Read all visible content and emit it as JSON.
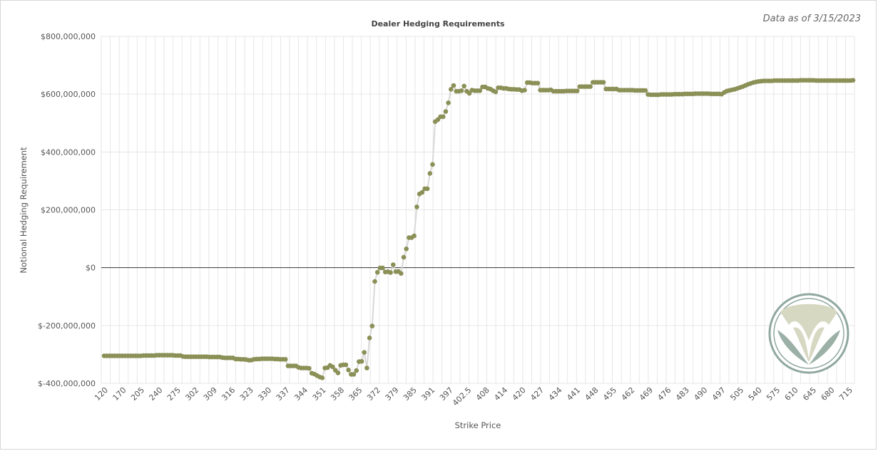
{
  "as_of": "Data as of 3/15/2023",
  "logo": {
    "name": "brand-logo",
    "ring_color": "#8fa7a0",
    "light_color": "#d7d8c2",
    "dark_color": "#9bb0a6"
  },
  "chart_data": {
    "type": "scatter",
    "title": "Dealer Hedging Requirements",
    "xlabel": "Strike Price",
    "ylabel": "Notional Hedging Requirement",
    "ylim": [
      -400000000,
      800000000
    ],
    "y_ticks": [
      "$800,000,000",
      "$600,000,000",
      "$400,000,000",
      "$200,000,000",
      "$0",
      "$-200,000,000",
      "$-400,000,000"
    ],
    "x_tick_labels": [
      "120",
      "170",
      "205",
      "240",
      "275",
      "302",
      "309",
      "316",
      "323",
      "330",
      "337",
      "344",
      "351",
      "358",
      "365",
      "372",
      "379",
      "385",
      "391",
      "397",
      "402.5",
      "408",
      "414",
      "420",
      "427",
      "434",
      "441",
      "448",
      "455",
      "462",
      "469",
      "476",
      "483",
      "490",
      "497",
      "505",
      "540",
      "575",
      "610",
      "645",
      "680",
      "715"
    ],
    "colors": {
      "point": "#8b9057",
      "line": "#d8d8d8",
      "grid": "#e6e6e6",
      "zero": "#333333"
    },
    "grid": true,
    "series": [
      {
        "values": [
          -305000000,
          -305000000,
          -305000000,
          -305000000,
          -305000000,
          -305000000,
          -305000000,
          -305000000,
          -305000000,
          -305000000,
          -305000000,
          -305000000,
          -305000000,
          -305000000,
          -305000000,
          -304000000,
          -304000000,
          -304000000,
          -304000000,
          -304000000,
          -303000000,
          -303000000,
          -303000000,
          -303000000,
          -303000000,
          -303000000,
          -303000000,
          -304000000,
          -304000000,
          -304000000,
          -307000000,
          -308000000,
          -308000000,
          -308000000,
          -308000000,
          -308000000,
          -308000000,
          -308000000,
          -308000000,
          -308000000,
          -309000000,
          -309000000,
          -309000000,
          -309000000,
          -309000000,
          -311000000,
          -312000000,
          -312000000,
          -312000000,
          -312000000,
          -316000000,
          -316000000,
          -317000000,
          -317000000,
          -318000000,
          -320000000,
          -320000000,
          -317000000,
          -316000000,
          -316000000,
          -315000000,
          -315000000,
          -315000000,
          -315000000,
          -315000000,
          -316000000,
          -316000000,
          -317000000,
          -317000000,
          -317000000,
          -340000000,
          -340000000,
          -340000000,
          -340000000,
          -345000000,
          -347000000,
          -347000000,
          -347000000,
          -348000000,
          -365000000,
          -368000000,
          -373000000,
          -378000000,
          -381000000,
          -347000000,
          -346000000,
          -338000000,
          -343000000,
          -355000000,
          -364000000,
          -338000000,
          -336000000,
          -336000000,
          -354000000,
          -369000000,
          -369000000,
          -356000000,
          -325000000,
          -324000000,
          -293000000,
          -347000000,
          -243000000,
          -202000000,
          -48000000,
          -16000000,
          -1000000,
          -1000000,
          -15000000,
          -14000000,
          -17000000,
          10000000,
          -14000000,
          -13000000,
          -20000000,
          36000000,
          65000000,
          104000000,
          104000000,
          110000000,
          210000000,
          255000000,
          260000000,
          273000000,
          273000000,
          326000000,
          357000000,
          505000000,
          512000000,
          522000000,
          522000000,
          540000000,
          570000000,
          617000000,
          630000000,
          610000000,
          610000000,
          612000000,
          628000000,
          610000000,
          603000000,
          614000000,
          612000000,
          612000000,
          612000000,
          625000000,
          625000000,
          620000000,
          618000000,
          612000000,
          608000000,
          622000000,
          622000000,
          620000000,
          620000000,
          618000000,
          617000000,
          617000000,
          616000000,
          616000000,
          612000000,
          614000000,
          640000000,
          640000000,
          638000000,
          638000000,
          638000000,
          614000000,
          614000000,
          614000000,
          614000000,
          615000000,
          610000000,
          610000000,
          610000000,
          610000000,
          610000000,
          611000000,
          611000000,
          611000000,
          611000000,
          611000000,
          626000000,
          626000000,
          626000000,
          626000000,
          626000000,
          641000000,
          641000000,
          641000000,
          641000000,
          641000000,
          618000000,
          618000000,
          618000000,
          618000000,
          618000000,
          614000000,
          614000000,
          614000000,
          614000000,
          614000000,
          614000000,
          613000000,
          613000000,
          613000000,
          613000000,
          613000000,
          599000000,
          598000000,
          598000000,
          598000000,
          598000000,
          599000000,
          599000000,
          599000000,
          599000000,
          599000000,
          600000000,
          600000000,
          600000000,
          600000000,
          601000000,
          601000000,
          601000000,
          601000000,
          602000000,
          602000000,
          602000000,
          602000000,
          602000000,
          602000000,
          601000000,
          601000000,
          601000000,
          601000000,
          600000000,
          606000000,
          611000000,
          613000000,
          615000000,
          617000000,
          620000000,
          623000000,
          626000000,
          630000000,
          634000000,
          637000000,
          640000000,
          642000000,
          644000000,
          645000000,
          646000000,
          646000000,
          646000000,
          646000000,
          647000000,
          647000000,
          647000000,
          647000000,
          647000000,
          647000000,
          647000000,
          647000000,
          647000000,
          647000000,
          648000000,
          648000000,
          648000000,
          648000000,
          648000000,
          648000000,
          647000000,
          647000000,
          647000000,
          647000000,
          647000000,
          647000000,
          647000000,
          647000000,
          647000000,
          647000000,
          647000000,
          647000000,
          647000000,
          647000000,
          648000000
        ]
      }
    ]
  }
}
